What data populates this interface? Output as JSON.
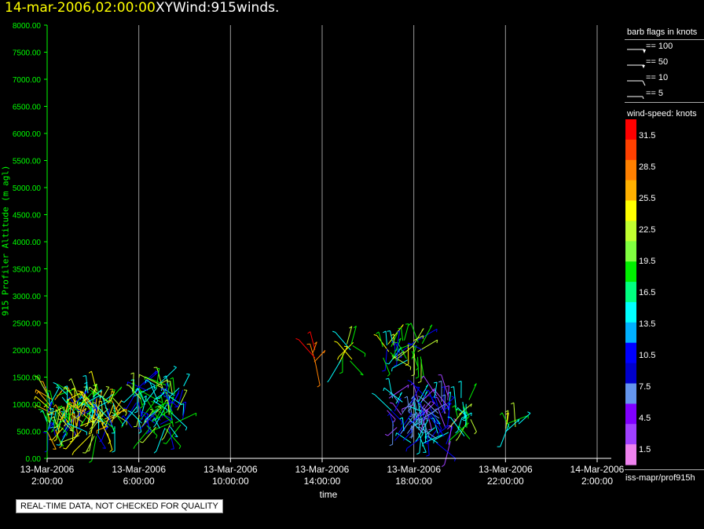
{
  "header": {
    "time": "14-mar-2006,02:00:00",
    "title": "XYWind:915winds."
  },
  "footer": {
    "qc_note": "REAL-TIME DATA, NOT CHECKED FOR QUALITY",
    "source": "iss-mapr/prof915h"
  },
  "barb_legend": {
    "title": "barb flags in knots",
    "items": [
      {
        "label": "== 100",
        "knots": 100
      },
      {
        "label": "== 50",
        "knots": 50
      },
      {
        "label": "== 10",
        "knots": 10
      },
      {
        "label": "== 5",
        "knots": 5
      }
    ]
  },
  "colorbar": {
    "title": "wind-speed: knots",
    "labels": [
      "31.5",
      "28.5",
      "25.5",
      "22.5",
      "19.5",
      "16.5",
      "13.5",
      "10.5",
      "7.5",
      "4.5",
      "1.5"
    ],
    "colors_top_to_bottom": [
      "#ff0000",
      "#ff4000",
      "#ff8000",
      "#ffb000",
      "#ffff00",
      "#c0ff30",
      "#80ff40",
      "#00ee00",
      "#00ff80",
      "#00ffff",
      "#00b0ff",
      "#0000ff",
      "#0000cc",
      "#6495ed",
      "#8000ff",
      "#a040ff",
      "#ee82ee"
    ]
  },
  "chart_data": {
    "type": "scatter",
    "ylabel": "915 Profiler Altitude (m agl)",
    "xlabel": "time",
    "ylim": [
      0,
      8000
    ],
    "y_ticks": [
      "0.00",
      "500.00",
      "1000.00",
      "1500.00",
      "2000.00",
      "2500.00",
      "3000.00",
      "3500.00",
      "4000.00",
      "4500.00",
      "5000.00",
      "5500.00",
      "6000.00",
      "6500.00",
      "7000.00",
      "7500.00",
      "8000.00"
    ],
    "xlim_hours": [
      0,
      24
    ],
    "x_ticks": [
      {
        "hour": 0,
        "date": "13-Mar-2006",
        "time": "2:00:00"
      },
      {
        "hour": 4,
        "date": "13-Mar-2006",
        "time": "6:00:00"
      },
      {
        "hour": 8,
        "date": "13-Mar-2006",
        "time": "10:00:00"
      },
      {
        "hour": 12,
        "date": "13-Mar-2006",
        "time": "14:00:00"
      },
      {
        "hour": 16,
        "date": "13-Mar-2006",
        "time": "18:00:00"
      },
      {
        "hour": 20,
        "date": "13-Mar-2006",
        "time": "22:00:00"
      },
      {
        "hour": 24,
        "date": "14-Mar-2006",
        "time": "2:00:00"
      }
    ],
    "grid": "vertical",
    "clusters": [
      {
        "t0": 0.0,
        "t1": 3.0,
        "z0": 400,
        "z1": 1250,
        "speed": [
          10,
          27
        ],
        "count": 160
      },
      {
        "t0": 3.7,
        "t1": 6.0,
        "z0": 550,
        "z1": 1450,
        "speed": [
          10,
          20
        ],
        "count": 90
      },
      {
        "t0": 11.6,
        "t1": 11.9,
        "z0": 1750,
        "z1": 2100,
        "speed": [
          27,
          31
        ],
        "count": 6
      },
      {
        "t0": 12.7,
        "t1": 13.4,
        "z0": 1700,
        "z1": 2180,
        "speed": [
          10,
          25
        ],
        "count": 10
      },
      {
        "t0": 14.6,
        "t1": 16.4,
        "z0": 1800,
        "z1": 2180,
        "speed": [
          10,
          22
        ],
        "count": 40
      },
      {
        "t0": 14.8,
        "t1": 17.6,
        "z0": 250,
        "z1": 1150,
        "speed": [
          3,
          14
        ],
        "count": 95
      },
      {
        "t0": 17.8,
        "t1": 18.5,
        "z0": 350,
        "z1": 1150,
        "speed": [
          13,
          20
        ],
        "count": 20
      },
      {
        "t0": 19.8,
        "t1": 20.6,
        "z0": 450,
        "z1": 700,
        "speed": [
          10,
          22
        ],
        "count": 8
      }
    ]
  }
}
